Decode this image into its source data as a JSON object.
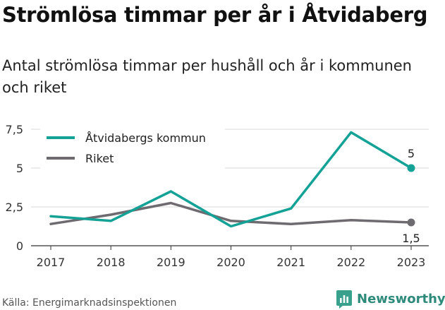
{
  "title": "Strömlösa timmar per år i Åtvidaberg",
  "subtitle": "Antal strömlösa timmar per hushåll och år i kommunen och riket",
  "source": "Källa: Energimarknadsinspektionen",
  "brand": {
    "name": "Newsworthy",
    "logo_icon": "newsworthy-logo-icon",
    "color": "#3aa08e"
  },
  "chart_data": {
    "type": "line",
    "categories": [
      "2017",
      "2018",
      "2019",
      "2020",
      "2021",
      "2022",
      "2023"
    ],
    "series": [
      {
        "name": "Åtvidabergs kommun",
        "color": "#14a196",
        "values": [
          1.9,
          1.6,
          3.5,
          1.25,
          2.4,
          7.3,
          5.0
        ],
        "end_label": "5"
      },
      {
        "name": "Riket",
        "color": "#6e6b70",
        "values": [
          1.4,
          2.0,
          2.75,
          1.6,
          1.4,
          1.65,
          1.5
        ],
        "end_label": "1,5"
      }
    ],
    "yticks": [
      {
        "value": 0,
        "label": "0"
      },
      {
        "value": 2.5,
        "label": "2,5"
      },
      {
        "value": 5,
        "label": "5"
      },
      {
        "value": 7.5,
        "label": "7,5"
      }
    ],
    "ylim": [
      0,
      7.5
    ],
    "grid": true,
    "legend": "top-left",
    "xlabel": "",
    "ylabel": ""
  }
}
